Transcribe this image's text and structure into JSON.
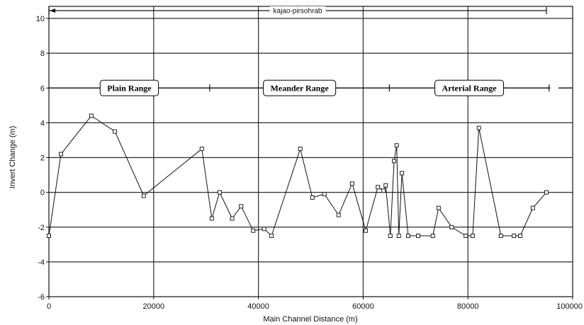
{
  "chart_data": {
    "type": "line",
    "xlabel": "Main Channel Distance (m)",
    "ylabel": "Invert Change (m)",
    "xlim": [
      0,
      100000
    ],
    "ylim": [
      -6,
      10
    ],
    "xticks": [
      0,
      20000,
      40000,
      60000,
      80000,
      100000
    ],
    "yticks": [
      10,
      8,
      6,
      4,
      2,
      0,
      -2,
      -4,
      -6
    ],
    "grid": true,
    "line_color": "#111111",
    "grid_color": "#2b2b2b",
    "series": [
      {
        "x": [
          0,
          2300,
          8100,
          12600,
          18100,
          29200,
          31100,
          32600,
          35000,
          36700,
          39000,
          41100,
          42500,
          48000,
          50300,
          52600,
          55300,
          57900,
          60500,
          62800,
          63900,
          64300,
          65200,
          65900,
          66400,
          66800,
          67400,
          68600,
          70500,
          73300,
          74400,
          76900,
          79600,
          80900,
          82100,
          86300,
          88800,
          90000,
          92400,
          95000
        ],
        "y": [
          -2.5,
          2.2,
          4.4,
          3.5,
          -0.2,
          2.5,
          -1.5,
          0,
          -1.5,
          -0.8,
          -2.2,
          -2.1,
          -2.5,
          2.5,
          -0.3,
          -0.1,
          -1.3,
          0.5,
          -2.2,
          0.3,
          0.1,
          0.4,
          -2.5,
          1.8,
          2.7,
          -2.5,
          1.1,
          -2.5,
          -2.5,
          -2.5,
          -0.9,
          -2,
          -2.5,
          -2.5,
          3.7,
          -2.5,
          -2.5,
          -2.5,
          -0.9,
          0
        ]
      }
    ],
    "annotations": {
      "reach": {
        "label": "kajao-pirsohrab",
        "x_start": 0,
        "x_end": 95000
      },
      "ranges": [
        {
          "label": "Plain Range",
          "x_start": 0,
          "x_end": 30700
        },
        {
          "label": "Meander Range",
          "x_start": 30700,
          "x_end": 65000
        },
        {
          "label": "Arterial Range",
          "x_start": 65000,
          "x_end": 95500
        }
      ]
    }
  }
}
